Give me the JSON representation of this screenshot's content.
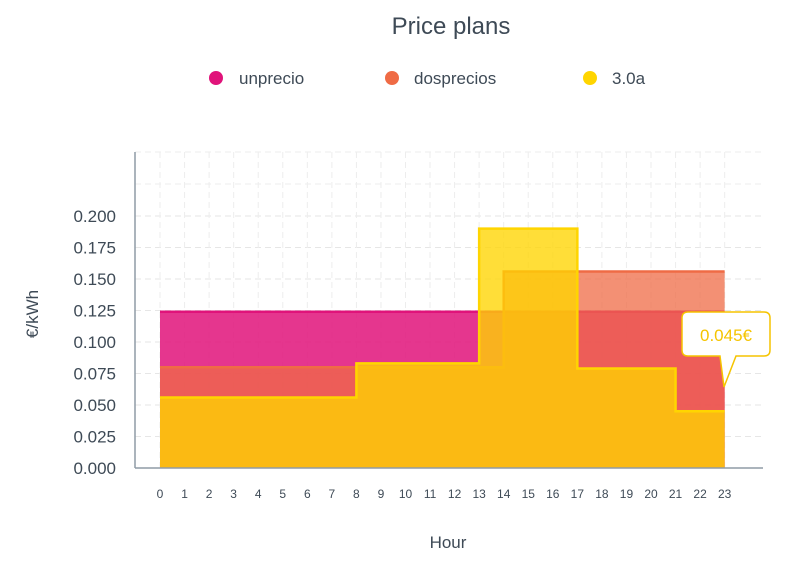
{
  "chart_data": {
    "type": "area",
    "title": "Price plans",
    "xlabel": "Hour",
    "ylabel": "€/kWh",
    "categories": [
      "0",
      "1",
      "2",
      "3",
      "4",
      "5",
      "6",
      "7",
      "8",
      "9",
      "10",
      "11",
      "12",
      "13",
      "14",
      "15",
      "16",
      "17",
      "18",
      "19",
      "20",
      "21",
      "22",
      "23"
    ],
    "ylim": [
      0,
      0.2
    ],
    "yticks": [
      "0.000",
      "0.025",
      "0.050",
      "0.075",
      "0.100",
      "0.125",
      "0.150",
      "0.175",
      "0.200"
    ],
    "legend_position": "top",
    "grid": true,
    "series": [
      {
        "name": "unprecio",
        "color": "#e0137a",
        "values": [
          0.124,
          0.124,
          0.124,
          0.124,
          0.124,
          0.124,
          0.124,
          0.124,
          0.124,
          0.124,
          0.124,
          0.124,
          0.124,
          0.124,
          0.124,
          0.124,
          0.124,
          0.124,
          0.124,
          0.124,
          0.124,
          0.124,
          0.124,
          0.124
        ]
      },
      {
        "name": "dosprecios",
        "color": "#ef6b45",
        "values": [
          0.08,
          0.08,
          0.08,
          0.08,
          0.08,
          0.08,
          0.08,
          0.08,
          0.08,
          0.08,
          0.08,
          0.08,
          0.08,
          0.08,
          0.156,
          0.156,
          0.156,
          0.156,
          0.156,
          0.156,
          0.156,
          0.156,
          0.156,
          0.156
        ]
      },
      {
        "name": "3.0a",
        "color": "#ffd500",
        "values": [
          0.056,
          0.056,
          0.056,
          0.056,
          0.056,
          0.056,
          0.056,
          0.056,
          0.083,
          0.083,
          0.083,
          0.083,
          0.083,
          0.19,
          0.19,
          0.19,
          0.19,
          0.079,
          0.079,
          0.079,
          0.079,
          0.045,
          0.045,
          0.045
        ]
      }
    ],
    "tooltip": {
      "text": "0.045€",
      "series": "3.0a",
      "hour": "23"
    }
  }
}
